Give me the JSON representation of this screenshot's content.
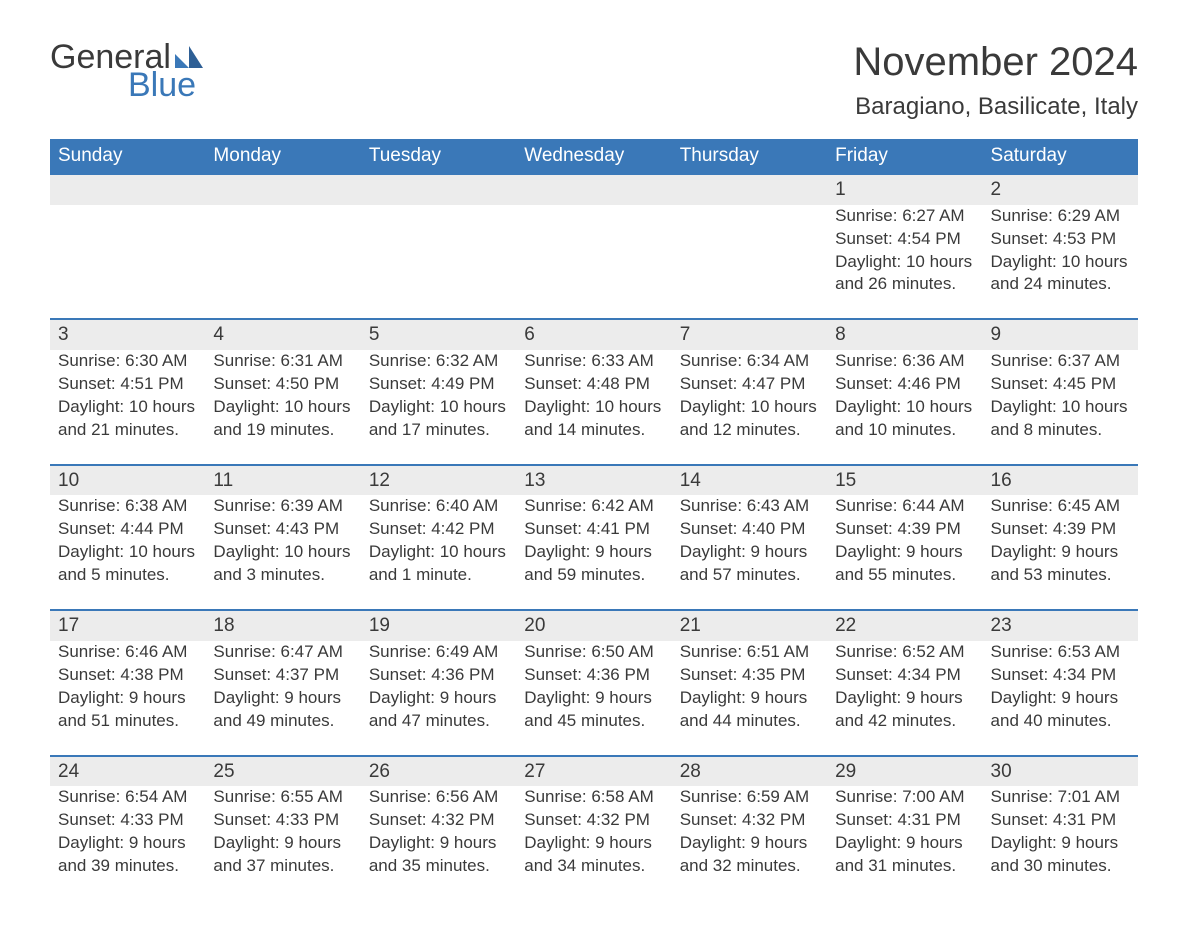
{
  "logo": {
    "word1": "General",
    "word2": "Blue",
    "brand_color": "#3a78b8"
  },
  "title": "November 2024",
  "location": "Baragiano, Basilicate, Italy",
  "colors": {
    "header_bg": "#3a78b8",
    "header_text": "#ffffff",
    "daynum_bg": "#ececec",
    "row_divider": "#3a78b8",
    "body_text": "#3a3a3a",
    "page_bg": "#ffffff"
  },
  "fonts": {
    "family": "Arial",
    "title_size_pt": 30,
    "location_size_pt": 18,
    "header_size_pt": 14,
    "body_size_pt": 13
  },
  "weekdays": [
    "Sunday",
    "Monday",
    "Tuesday",
    "Wednesday",
    "Thursday",
    "Friday",
    "Saturday"
  ],
  "labels": {
    "sunrise": "Sunrise:",
    "sunset": "Sunset:",
    "daylight": "Daylight:"
  },
  "first_weekday_index": 5,
  "days": [
    {
      "n": 1,
      "sunrise": "6:27 AM",
      "sunset": "4:54 PM",
      "daylight": "10 hours and 26 minutes."
    },
    {
      "n": 2,
      "sunrise": "6:29 AM",
      "sunset": "4:53 PM",
      "daylight": "10 hours and 24 minutes."
    },
    {
      "n": 3,
      "sunrise": "6:30 AM",
      "sunset": "4:51 PM",
      "daylight": "10 hours and 21 minutes."
    },
    {
      "n": 4,
      "sunrise": "6:31 AM",
      "sunset": "4:50 PM",
      "daylight": "10 hours and 19 minutes."
    },
    {
      "n": 5,
      "sunrise": "6:32 AM",
      "sunset": "4:49 PM",
      "daylight": "10 hours and 17 minutes."
    },
    {
      "n": 6,
      "sunrise": "6:33 AM",
      "sunset": "4:48 PM",
      "daylight": "10 hours and 14 minutes."
    },
    {
      "n": 7,
      "sunrise": "6:34 AM",
      "sunset": "4:47 PM",
      "daylight": "10 hours and 12 minutes."
    },
    {
      "n": 8,
      "sunrise": "6:36 AM",
      "sunset": "4:46 PM",
      "daylight": "10 hours and 10 minutes."
    },
    {
      "n": 9,
      "sunrise": "6:37 AM",
      "sunset": "4:45 PM",
      "daylight": "10 hours and 8 minutes."
    },
    {
      "n": 10,
      "sunrise": "6:38 AM",
      "sunset": "4:44 PM",
      "daylight": "10 hours and 5 minutes."
    },
    {
      "n": 11,
      "sunrise": "6:39 AM",
      "sunset": "4:43 PM",
      "daylight": "10 hours and 3 minutes."
    },
    {
      "n": 12,
      "sunrise": "6:40 AM",
      "sunset": "4:42 PM",
      "daylight": "10 hours and 1 minute."
    },
    {
      "n": 13,
      "sunrise": "6:42 AM",
      "sunset": "4:41 PM",
      "daylight": "9 hours and 59 minutes."
    },
    {
      "n": 14,
      "sunrise": "6:43 AM",
      "sunset": "4:40 PM",
      "daylight": "9 hours and 57 minutes."
    },
    {
      "n": 15,
      "sunrise": "6:44 AM",
      "sunset": "4:39 PM",
      "daylight": "9 hours and 55 minutes."
    },
    {
      "n": 16,
      "sunrise": "6:45 AM",
      "sunset": "4:39 PM",
      "daylight": "9 hours and 53 minutes."
    },
    {
      "n": 17,
      "sunrise": "6:46 AM",
      "sunset": "4:38 PM",
      "daylight": "9 hours and 51 minutes."
    },
    {
      "n": 18,
      "sunrise": "6:47 AM",
      "sunset": "4:37 PM",
      "daylight": "9 hours and 49 minutes."
    },
    {
      "n": 19,
      "sunrise": "6:49 AM",
      "sunset": "4:36 PM",
      "daylight": "9 hours and 47 minutes."
    },
    {
      "n": 20,
      "sunrise": "6:50 AM",
      "sunset": "4:36 PM",
      "daylight": "9 hours and 45 minutes."
    },
    {
      "n": 21,
      "sunrise": "6:51 AM",
      "sunset": "4:35 PM",
      "daylight": "9 hours and 44 minutes."
    },
    {
      "n": 22,
      "sunrise": "6:52 AM",
      "sunset": "4:34 PM",
      "daylight": "9 hours and 42 minutes."
    },
    {
      "n": 23,
      "sunrise": "6:53 AM",
      "sunset": "4:34 PM",
      "daylight": "9 hours and 40 minutes."
    },
    {
      "n": 24,
      "sunrise": "6:54 AM",
      "sunset": "4:33 PM",
      "daylight": "9 hours and 39 minutes."
    },
    {
      "n": 25,
      "sunrise": "6:55 AM",
      "sunset": "4:33 PM",
      "daylight": "9 hours and 37 minutes."
    },
    {
      "n": 26,
      "sunrise": "6:56 AM",
      "sunset": "4:32 PM",
      "daylight": "9 hours and 35 minutes."
    },
    {
      "n": 27,
      "sunrise": "6:58 AM",
      "sunset": "4:32 PM",
      "daylight": "9 hours and 34 minutes."
    },
    {
      "n": 28,
      "sunrise": "6:59 AM",
      "sunset": "4:32 PM",
      "daylight": "9 hours and 32 minutes."
    },
    {
      "n": 29,
      "sunrise": "7:00 AM",
      "sunset": "4:31 PM",
      "daylight": "9 hours and 31 minutes."
    },
    {
      "n": 30,
      "sunrise": "7:01 AM",
      "sunset": "4:31 PM",
      "daylight": "9 hours and 30 minutes."
    }
  ]
}
